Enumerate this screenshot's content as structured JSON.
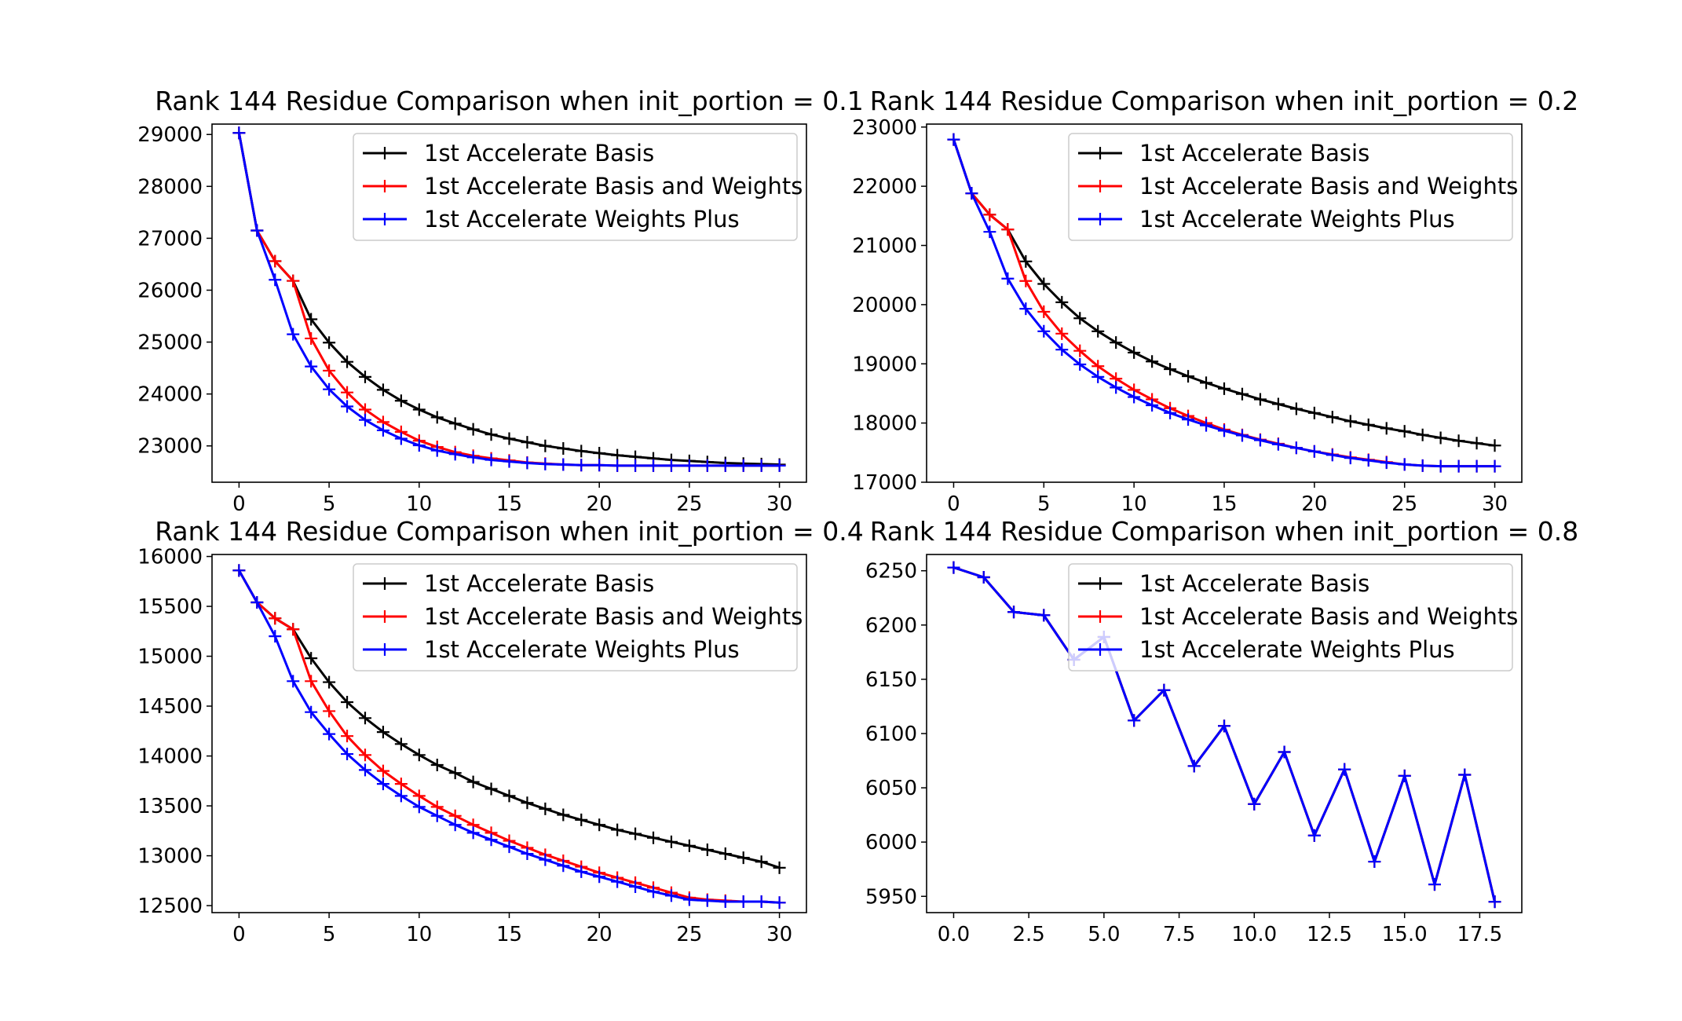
{
  "chart_data": [
    {
      "type": "line",
      "title": "Rank 144 Residue Comparison when init_portion = 0.1",
      "xlabel": "",
      "ylabel": "",
      "xlim": [
        -1.5,
        31.5
      ],
      "ylim": [
        22300,
        29200
      ],
      "xticks": [
        0,
        5,
        10,
        15,
        20,
        25,
        30
      ],
      "xtick_labels": [
        "0",
        "5",
        "10",
        "15",
        "20",
        "25",
        "30"
      ],
      "yticks": [
        23000,
        24000,
        25000,
        26000,
        27000,
        28000,
        29000
      ],
      "ytick_labels": [
        "23000",
        "24000",
        "25000",
        "26000",
        "27000",
        "28000",
        "29000"
      ],
      "grid": false,
      "legend_position": "top-right",
      "series": [
        {
          "name": "1st Accelerate Basis",
          "color": "#000000",
          "x": [
            0,
            1,
            2,
            3,
            4,
            5,
            6,
            7,
            8,
            9,
            10,
            11,
            12,
            13,
            14,
            15,
            16,
            17,
            18,
            19,
            20,
            21,
            22,
            23,
            24,
            25,
            26,
            27,
            28,
            29,
            30
          ],
          "y": [
            29030,
            27150,
            26560,
            26180,
            25440,
            24990,
            24620,
            24330,
            24080,
            23870,
            23700,
            23550,
            23430,
            23320,
            23220,
            23140,
            23070,
            23000,
            22950,
            22900,
            22860,
            22820,
            22790,
            22760,
            22730,
            22710,
            22690,
            22670,
            22660,
            22650,
            22640
          ]
        },
        {
          "name": "1st Accelerate Basis and Weights",
          "color": "#ff0000",
          "x": [
            0,
            1,
            2,
            3,
            4,
            5,
            6,
            7,
            8,
            9,
            10,
            11,
            12,
            13,
            14,
            15,
            16,
            17,
            18,
            19,
            20,
            21,
            22,
            23,
            24,
            25,
            26,
            27,
            28,
            29,
            30
          ],
          "y": [
            29030,
            27150,
            26560,
            26180,
            25070,
            24450,
            24030,
            23700,
            23460,
            23270,
            23100,
            22980,
            22880,
            22810,
            22760,
            22720,
            22680,
            22660,
            22640,
            22630,
            22630,
            22620,
            22620,
            22620,
            22620,
            22620,
            22620,
            22620,
            22620,
            22620,
            22620
          ]
        },
        {
          "name": "1st Accelerate Weights Plus",
          "color": "#0000ff",
          "x": [
            0,
            1,
            2,
            3,
            4,
            5,
            6,
            7,
            8,
            9,
            10,
            11,
            12,
            13,
            14,
            15,
            16,
            17,
            18,
            19,
            20,
            21,
            22,
            23,
            24,
            25,
            26,
            27,
            28,
            29,
            30
          ],
          "y": [
            29030,
            27150,
            26200,
            25150,
            24530,
            24090,
            23760,
            23500,
            23300,
            23140,
            23010,
            22910,
            22840,
            22780,
            22730,
            22700,
            22670,
            22650,
            22640,
            22630,
            22630,
            22620,
            22620,
            22620,
            22620,
            22620,
            22620,
            22620,
            22620,
            22620,
            22620
          ]
        }
      ]
    },
    {
      "type": "line",
      "title": "Rank 144 Residue Comparison when init_portion = 0.2",
      "xlabel": "",
      "ylabel": "",
      "xlim": [
        -1.5,
        31.5
      ],
      "ylim": [
        17000,
        23050
      ],
      "xticks": [
        0,
        5,
        10,
        15,
        20,
        25,
        30
      ],
      "xtick_labels": [
        "0",
        "5",
        "10",
        "15",
        "20",
        "25",
        "30"
      ],
      "yticks": [
        17000,
        18000,
        19000,
        20000,
        21000,
        22000,
        23000
      ],
      "ytick_labels": [
        "17000",
        "18000",
        "19000",
        "20000",
        "21000",
        "22000",
        "23000"
      ],
      "grid": false,
      "legend_position": "top-right",
      "series": [
        {
          "name": "1st Accelerate Basis",
          "color": "#000000",
          "x": [
            0,
            1,
            2,
            3,
            4,
            5,
            6,
            7,
            8,
            9,
            10,
            11,
            12,
            13,
            14,
            15,
            16,
            17,
            18,
            19,
            20,
            21,
            22,
            23,
            24,
            25,
            26,
            27,
            28,
            29,
            30
          ],
          "y": [
            22790,
            21880,
            21520,
            21270,
            20730,
            20350,
            20040,
            19770,
            19550,
            19360,
            19190,
            19040,
            18910,
            18790,
            18680,
            18580,
            18490,
            18400,
            18320,
            18240,
            18170,
            18100,
            18030,
            17970,
            17910,
            17860,
            17800,
            17750,
            17700,
            17660,
            17620
          ]
        },
        {
          "name": "1st Accelerate Basis and Weights",
          "color": "#ff0000",
          "x": [
            0,
            1,
            2,
            3,
            4,
            5,
            6,
            7,
            8,
            9,
            10,
            11,
            12,
            13,
            14,
            15,
            16,
            17,
            18,
            19,
            20,
            21,
            22,
            23,
            24,
            25,
            26,
            27,
            28,
            29,
            30
          ],
          "y": [
            22790,
            21880,
            21520,
            21270,
            20400,
            19880,
            19510,
            19220,
            18960,
            18750,
            18560,
            18400,
            18250,
            18120,
            18000,
            17890,
            17800,
            17720,
            17650,
            17580,
            17520,
            17470,
            17420,
            17380,
            17340,
            17300,
            17280,
            17270,
            17270,
            17270,
            17270
          ]
        },
        {
          "name": "1st Accelerate Weights Plus",
          "color": "#0000ff",
          "x": [
            0,
            1,
            2,
            3,
            4,
            5,
            6,
            7,
            8,
            9,
            10,
            11,
            12,
            13,
            14,
            15,
            16,
            17,
            18,
            19,
            20,
            21,
            22,
            23,
            24,
            25,
            26,
            27,
            28,
            29,
            30
          ],
          "y": [
            22790,
            21880,
            21230,
            20440,
            19930,
            19550,
            19240,
            18990,
            18780,
            18600,
            18440,
            18300,
            18170,
            18060,
            17960,
            17870,
            17790,
            17710,
            17640,
            17580,
            17520,
            17460,
            17410,
            17370,
            17330,
            17300,
            17280,
            17270,
            17270,
            17270,
            17270
          ]
        }
      ]
    },
    {
      "type": "line",
      "title": "Rank 144 Residue Comparison when init_portion = 0.4",
      "xlabel": "",
      "ylabel": "",
      "xlim": [
        -1.5,
        31.5
      ],
      "ylim": [
        12430,
        16020
      ],
      "xticks": [
        0,
        5,
        10,
        15,
        20,
        25,
        30
      ],
      "xtick_labels": [
        "0",
        "5",
        "10",
        "15",
        "20",
        "25",
        "30"
      ],
      "yticks": [
        12500,
        13000,
        13500,
        14000,
        14500,
        15000,
        15500,
        16000
      ],
      "ytick_labels": [
        "12500",
        "13000",
        "13500",
        "14000",
        "14500",
        "15000",
        "15500",
        "16000"
      ],
      "grid": false,
      "legend_position": "top-right",
      "series": [
        {
          "name": "1st Accelerate Basis",
          "color": "#000000",
          "x": [
            0,
            1,
            2,
            3,
            4,
            5,
            6,
            7,
            8,
            9,
            10,
            11,
            12,
            13,
            14,
            15,
            16,
            17,
            18,
            19,
            20,
            21,
            22,
            23,
            24,
            25,
            26,
            27,
            28,
            29,
            30
          ],
          "y": [
            15860,
            15540,
            15380,
            15270,
            14980,
            14740,
            14540,
            14380,
            14240,
            14120,
            14010,
            13910,
            13830,
            13740,
            13670,
            13600,
            13530,
            13470,
            13410,
            13360,
            13310,
            13260,
            13220,
            13180,
            13140,
            13100,
            13060,
            13020,
            12980,
            12940,
            12880
          ]
        },
        {
          "name": "1st Accelerate Basis and Weights",
          "color": "#ff0000",
          "x": [
            0,
            1,
            2,
            3,
            4,
            5,
            6,
            7,
            8,
            9,
            10,
            11,
            12,
            13,
            14,
            15,
            16,
            17,
            18,
            19,
            20,
            21,
            22,
            23,
            24,
            25,
            26,
            27,
            28,
            29,
            30
          ],
          "y": [
            15860,
            15540,
            15380,
            15270,
            14750,
            14450,
            14200,
            14010,
            13850,
            13720,
            13600,
            13490,
            13400,
            13310,
            13230,
            13150,
            13080,
            13010,
            12950,
            12890,
            12830,
            12780,
            12730,
            12680,
            12630,
            12580,
            12560,
            12550,
            12540,
            12540,
            12530
          ]
        },
        {
          "name": "1st Accelerate Weights Plus",
          "color": "#0000ff",
          "x": [
            0,
            1,
            2,
            3,
            4,
            5,
            6,
            7,
            8,
            9,
            10,
            11,
            12,
            13,
            14,
            15,
            16,
            17,
            18,
            19,
            20,
            21,
            22,
            23,
            24,
            25,
            26,
            27,
            28,
            29,
            30
          ],
          "y": [
            15860,
            15540,
            15200,
            14750,
            14440,
            14220,
            14020,
            13860,
            13720,
            13600,
            13490,
            13400,
            13310,
            13230,
            13160,
            13090,
            13020,
            12960,
            12900,
            12840,
            12790,
            12740,
            12690,
            12640,
            12600,
            12560,
            12550,
            12540,
            12540,
            12540,
            12530
          ]
        }
      ]
    },
    {
      "type": "line",
      "title": "Rank 144 Residue Comparison when init_portion = 0.8",
      "xlabel": "",
      "ylabel": "",
      "xlim": [
        -0.9,
        18.9
      ],
      "ylim": [
        5935,
        6265
      ],
      "xticks": [
        0,
        2.5,
        5,
        7.5,
        10,
        12.5,
        15,
        17.5
      ],
      "xtick_labels": [
        "0.0",
        "2.5",
        "5.0",
        "7.5",
        "10.0",
        "12.5",
        "15.0",
        "17.5"
      ],
      "yticks": [
        5950,
        6000,
        6050,
        6100,
        6150,
        6200,
        6250
      ],
      "ytick_labels": [
        "5950",
        "6000",
        "6050",
        "6100",
        "6150",
        "6200",
        "6250"
      ],
      "grid": false,
      "legend_position": "top-right",
      "series": [
        {
          "name": "1st Accelerate Basis",
          "color": "#000000",
          "x": [
            0,
            1,
            2,
            3,
            4,
            5,
            6,
            7,
            8,
            9,
            10,
            11,
            12,
            13,
            14,
            15,
            16,
            17,
            18
          ],
          "y": [
            6253,
            6244,
            6212,
            6209,
            6168,
            6189,
            6112,
            6140,
            6070,
            6107,
            6035,
            6083,
            6006,
            6067,
            5982,
            6061,
            5961,
            6062,
            5945
          ]
        },
        {
          "name": "1st Accelerate Basis and Weights",
          "color": "#ff0000",
          "x": [
            0,
            1,
            2,
            3,
            4,
            5,
            6,
            7,
            8,
            9,
            10,
            11,
            12,
            13,
            14,
            15,
            16,
            17,
            18
          ],
          "y": [
            6253,
            6244,
            6212,
            6209,
            6168,
            6189,
            6112,
            6140,
            6070,
            6107,
            6035,
            6083,
            6006,
            6067,
            5982,
            6061,
            5961,
            6062,
            5945
          ]
        },
        {
          "name": "1st Accelerate Weights Plus",
          "color": "#0000ff",
          "x": [
            0,
            1,
            2,
            3,
            4,
            5,
            6,
            7,
            8,
            9,
            10,
            11,
            12,
            13,
            14,
            15,
            16,
            17,
            18
          ],
          "y": [
            6253,
            6244,
            6212,
            6209,
            6168,
            6189,
            6112,
            6140,
            6070,
            6107,
            6035,
            6083,
            6006,
            6067,
            5982,
            6061,
            5961,
            6062,
            5945
          ]
        }
      ]
    }
  ]
}
